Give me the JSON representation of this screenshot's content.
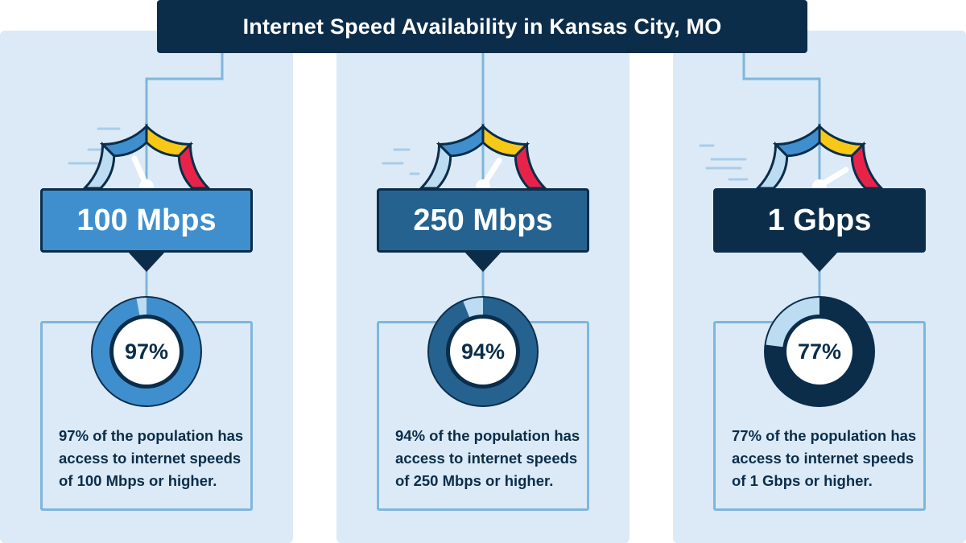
{
  "title": "Internet Speed Availability in Kansas City, MO",
  "colors": {
    "navy": "#0b2d4a",
    "mid_blue": "#3f8fcf",
    "steel_blue": "#26628f",
    "light_blue": "#bcdcf1",
    "yellow": "#f7c815",
    "red": "#e8234a",
    "panel_bg": "#dbeaf6"
  },
  "chart_data": [
    {
      "type": "donut",
      "label": "100 Mbps",
      "value": 97,
      "value_label": "97%",
      "description": "97% of the population has access to internet speeds of 100 Mbps or higher."
    },
    {
      "type": "donut",
      "label": "250 Mbps",
      "value": 94,
      "value_label": "94%",
      "description": "94% of the population has access to internet speeds of 250 Mbps or higher."
    },
    {
      "type": "donut",
      "label": "1 Gbps",
      "value": 77,
      "value_label": "77%",
      "description": "77% of the population has access to internet speeds of 1 Gbps or higher."
    }
  ]
}
